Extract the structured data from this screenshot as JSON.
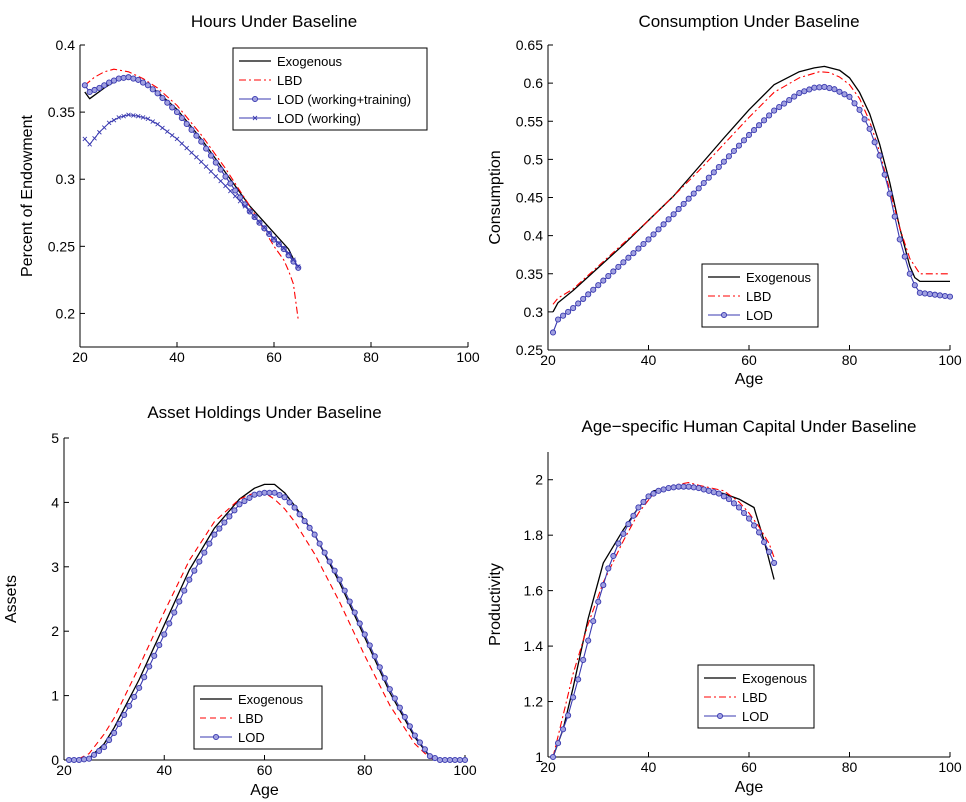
{
  "chart_data": [
    {
      "type": "line",
      "title": "Hours Under Baseline",
      "xlabel": "",
      "ylabel": "Percent of Endowment",
      "xlim": [
        20,
        100
      ],
      "ylim": [
        0.175,
        0.4
      ],
      "xticks": [
        20,
        40,
        60,
        80,
        100
      ],
      "yticks": [
        0.2,
        0.25,
        0.3,
        0.35,
        0.4
      ],
      "legend_position": "top-right",
      "series": [
        {
          "name": "Exogenous",
          "style": "solid-black",
          "x": [
            21,
            22,
            25,
            28,
            30,
            33,
            36,
            40,
            45,
            50,
            55,
            60,
            63,
            65
          ],
          "y": [
            0.365,
            0.36,
            0.368,
            0.375,
            0.376,
            0.373,
            0.365,
            0.352,
            0.33,
            0.305,
            0.28,
            0.26,
            0.248,
            0.233
          ]
        },
        {
          "name": "LBD",
          "style": "dashdot-red",
          "x": [
            21,
            23,
            25,
            27,
            30,
            33,
            36,
            40,
            45,
            50,
            55,
            60,
            62,
            63,
            64,
            65
          ],
          "y": [
            0.37,
            0.376,
            0.38,
            0.382,
            0.38,
            0.375,
            0.368,
            0.355,
            0.333,
            0.308,
            0.28,
            0.25,
            0.24,
            0.232,
            0.222,
            0.195
          ]
        },
        {
          "name": "LOD (working+training)",
          "style": "circle-blue",
          "x": [
            21,
            22,
            24,
            26,
            28,
            30,
            32,
            34,
            36,
            40,
            45,
            50,
            55,
            60,
            62,
            65
          ],
          "y": [
            0.37,
            0.365,
            0.368,
            0.372,
            0.375,
            0.376,
            0.374,
            0.37,
            0.364,
            0.35,
            0.328,
            0.302,
            0.276,
            0.255,
            0.248,
            0.234
          ]
        },
        {
          "name": "LOD (working)",
          "style": "cross-blue",
          "x": [
            21,
            22,
            24,
            26,
            28,
            30,
            32,
            34,
            36,
            40,
            45,
            50,
            55,
            60,
            63,
            65
          ],
          "y": [
            0.33,
            0.326,
            0.335,
            0.342,
            0.346,
            0.348,
            0.347,
            0.345,
            0.341,
            0.33,
            0.313,
            0.295,
            0.276,
            0.256,
            0.245,
            0.235
          ]
        }
      ]
    },
    {
      "type": "line",
      "title": "Consumption Under Baseline",
      "xlabel": "Age",
      "ylabel": "Consumption",
      "xlim": [
        20,
        100
      ],
      "ylim": [
        0.25,
        0.65
      ],
      "xticks": [
        20,
        40,
        60,
        80,
        100
      ],
      "yticks": [
        0.25,
        0.3,
        0.35,
        0.4,
        0.45,
        0.5,
        0.55,
        0.6,
        0.65
      ],
      "legend_position": "bottom-right",
      "series": [
        {
          "name": "Exogenous",
          "style": "solid-black",
          "x": [
            21,
            22,
            25,
            30,
            35,
            40,
            45,
            50,
            55,
            60,
            65,
            70,
            73,
            75,
            78,
            80,
            82,
            84,
            86,
            88,
            90,
            92,
            93,
            94,
            100
          ],
          "y": [
            0.3,
            0.312,
            0.328,
            0.358,
            0.388,
            0.42,
            0.452,
            0.49,
            0.528,
            0.565,
            0.598,
            0.615,
            0.62,
            0.622,
            0.617,
            0.607,
            0.588,
            0.56,
            0.52,
            0.47,
            0.41,
            0.36,
            0.345,
            0.34,
            0.34
          ]
        },
        {
          "name": "LBD",
          "style": "dashdot-red",
          "x": [
            21,
            22,
            25,
            30,
            35,
            40,
            45,
            50,
            55,
            60,
            65,
            70,
            74,
            76,
            78,
            80,
            82,
            84,
            86,
            88,
            90,
            92,
            94,
            100
          ],
          "y": [
            0.31,
            0.318,
            0.33,
            0.36,
            0.39,
            0.42,
            0.452,
            0.485,
            0.52,
            0.555,
            0.588,
            0.607,
            0.615,
            0.614,
            0.608,
            0.598,
            0.58,
            0.55,
            0.51,
            0.46,
            0.41,
            0.37,
            0.35,
            0.35
          ]
        },
        {
          "name": "LOD",
          "style": "circle-blue",
          "x": [
            21,
            22,
            25,
            30,
            35,
            40,
            45,
            50,
            55,
            60,
            65,
            70,
            73,
            75,
            77,
            80,
            82,
            84,
            86,
            88,
            90,
            92,
            93,
            94,
            100
          ],
          "y": [
            0.273,
            0.29,
            0.305,
            0.335,
            0.365,
            0.395,
            0.428,
            0.462,
            0.497,
            0.532,
            0.564,
            0.587,
            0.594,
            0.595,
            0.592,
            0.582,
            0.565,
            0.54,
            0.505,
            0.455,
            0.395,
            0.35,
            0.335,
            0.325,
            0.32
          ]
        }
      ]
    },
    {
      "type": "line",
      "title": "Asset Holdings Under Baseline",
      "xlabel": "Age",
      "ylabel": "Assets",
      "xlim": [
        20,
        100
      ],
      "ylim": [
        0,
        5
      ],
      "xticks": [
        20,
        40,
        60,
        80,
        100
      ],
      "yticks": [
        0,
        1,
        2,
        3,
        4,
        5
      ],
      "legend_position": "bottom-center",
      "series": [
        {
          "name": "Exogenous",
          "style": "solid-black",
          "x": [
            21,
            23,
            25,
            28,
            30,
            35,
            40,
            45,
            50,
            55,
            58,
            60,
            62,
            64,
            66,
            70,
            75,
            80,
            85,
            90,
            93,
            95,
            100
          ],
          "y": [
            0,
            0,
            0.03,
            0.25,
            0.5,
            1.25,
            2.1,
            2.95,
            3.6,
            4.05,
            4.22,
            4.28,
            4.28,
            4.15,
            3.95,
            3.5,
            2.75,
            1.9,
            1.05,
            0.35,
            0.05,
            0,
            0
          ]
        },
        {
          "name": "LBD",
          "style": "dashed-red",
          "x": [
            21,
            23,
            25,
            28,
            30,
            35,
            40,
            45,
            50,
            55,
            58,
            60,
            62,
            64,
            66,
            70,
            75,
            80,
            85,
            90,
            93,
            95,
            100
          ],
          "y": [
            0,
            0.02,
            0.1,
            0.4,
            0.65,
            1.45,
            2.3,
            3.1,
            3.7,
            4.05,
            4.15,
            4.15,
            4.05,
            3.9,
            3.7,
            3.2,
            2.45,
            1.62,
            0.85,
            0.25,
            0.03,
            0,
            0
          ]
        },
        {
          "name": "LOD",
          "style": "circle-blue",
          "x": [
            21,
            23,
            25,
            28,
            30,
            35,
            40,
            45,
            50,
            55,
            58,
            60,
            62,
            64,
            66,
            70,
            75,
            80,
            85,
            90,
            93,
            95,
            100
          ],
          "y": [
            0,
            0,
            0.02,
            0.2,
            0.42,
            1.12,
            1.95,
            2.8,
            3.5,
            3.97,
            4.12,
            4.15,
            4.15,
            4.08,
            3.92,
            3.5,
            2.8,
            1.95,
            1.1,
            0.38,
            0.06,
            0,
            0
          ]
        }
      ]
    },
    {
      "type": "line",
      "title": "Age−specific Human Capital Under Baseline",
      "xlabel": "Age",
      "ylabel": "Productivity",
      "xlim": [
        20,
        100
      ],
      "ylim": [
        1,
        2.1
      ],
      "xticks": [
        20,
        40,
        60,
        80,
        100
      ],
      "yticks": [
        1,
        1.2,
        1.4,
        1.6,
        1.8,
        2
      ],
      "legend_position": "bottom-right",
      "series": [
        {
          "name": "Exogenous",
          "style": "solid-black",
          "x": [
            21,
            23,
            25,
            28,
            31,
            35,
            38,
            41,
            45,
            50,
            55,
            58,
            61,
            63,
            65
          ],
          "y": [
            1.0,
            1.1,
            1.25,
            1.5,
            1.7,
            1.82,
            1.9,
            1.96,
            1.97,
            1.97,
            1.95,
            1.93,
            1.9,
            1.78,
            1.64
          ]
        },
        {
          "name": "LBD",
          "style": "dashdot-red",
          "x": [
            21,
            23,
            25,
            28,
            31,
            35,
            38,
            41,
            45,
            48,
            50,
            55,
            58,
            60,
            62,
            64,
            65
          ],
          "y": [
            1.0,
            1.15,
            1.3,
            1.48,
            1.63,
            1.78,
            1.88,
            1.95,
            1.98,
            1.99,
            1.98,
            1.96,
            1.92,
            1.88,
            1.83,
            1.77,
            1.72
          ]
        },
        {
          "name": "LOD",
          "style": "circle-blue",
          "x": [
            21,
            22,
            24,
            26,
            28,
            30,
            32,
            34,
            36,
            38,
            40,
            42,
            44,
            46,
            48,
            50,
            52,
            54,
            56,
            58,
            60,
            62,
            64,
            65
          ],
          "y": [
            1.0,
            1.05,
            1.15,
            1.28,
            1.42,
            1.56,
            1.68,
            1.77,
            1.84,
            1.9,
            1.94,
            1.96,
            1.97,
            1.975,
            1.975,
            1.97,
            1.96,
            1.95,
            1.93,
            1.9,
            1.86,
            1.81,
            1.74,
            1.7
          ]
        }
      ]
    }
  ]
}
